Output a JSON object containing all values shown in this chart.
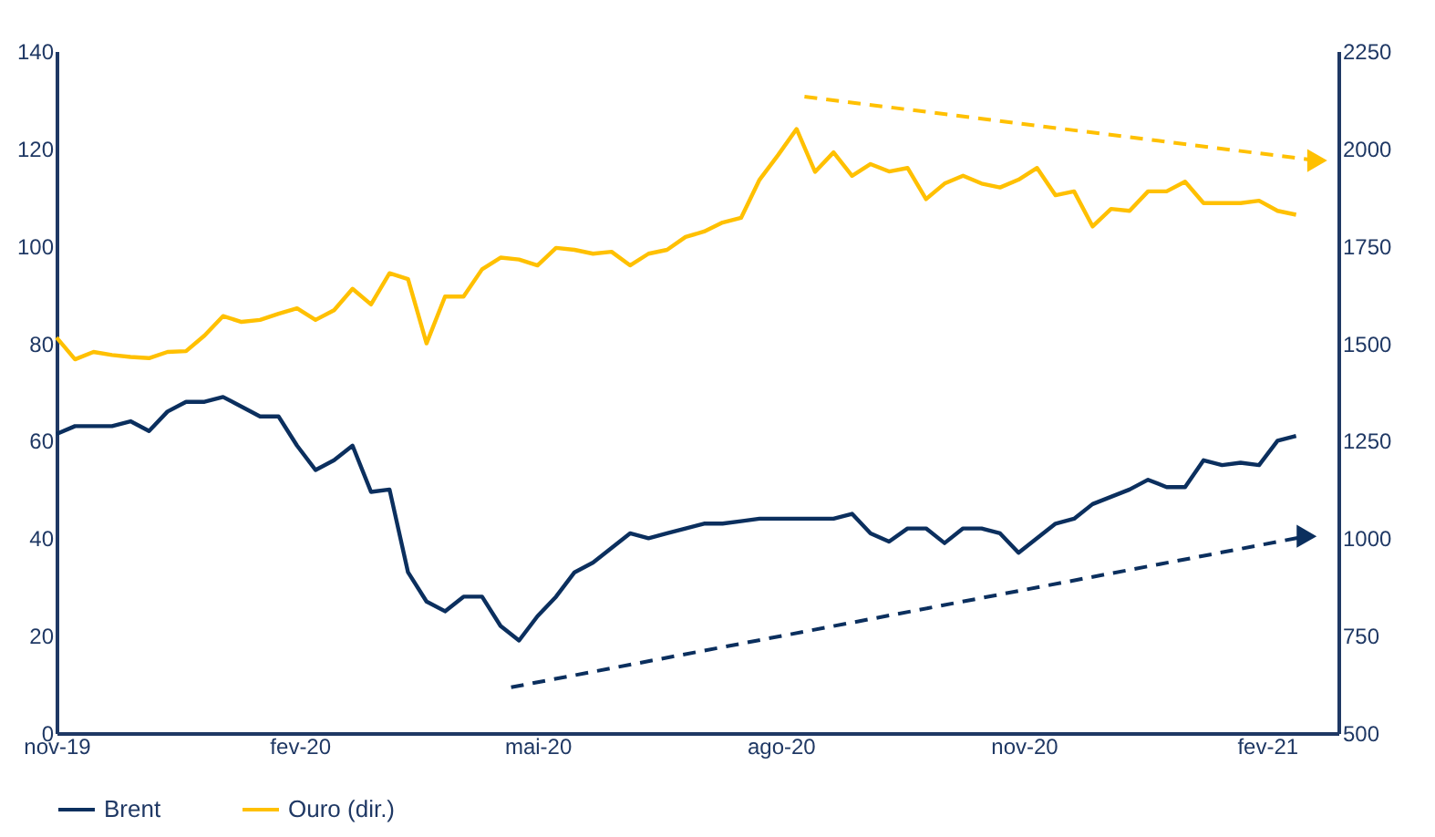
{
  "chart_data": {
    "type": "line",
    "x": [
      "2019-11-01",
      "2019-11-08",
      "2019-11-15",
      "2019-11-22",
      "2019-11-29",
      "2019-12-06",
      "2019-12-13",
      "2019-12-20",
      "2019-12-27",
      "2020-01-03",
      "2020-01-10",
      "2020-01-17",
      "2020-01-24",
      "2020-01-31",
      "2020-02-07",
      "2020-02-14",
      "2020-02-21",
      "2020-02-28",
      "2020-03-06",
      "2020-03-13",
      "2020-03-20",
      "2020-03-27",
      "2020-04-03",
      "2020-04-10",
      "2020-04-17",
      "2020-04-24",
      "2020-05-01",
      "2020-05-08",
      "2020-05-15",
      "2020-05-22",
      "2020-05-29",
      "2020-06-05",
      "2020-06-12",
      "2020-06-19",
      "2020-06-26",
      "2020-07-03",
      "2020-07-10",
      "2020-07-17",
      "2020-07-24",
      "2020-07-31",
      "2020-08-07",
      "2020-08-14",
      "2020-08-21",
      "2020-08-28",
      "2020-09-04",
      "2020-09-11",
      "2020-09-18",
      "2020-09-25",
      "2020-10-02",
      "2020-10-09",
      "2020-10-16",
      "2020-10-23",
      "2020-10-30",
      "2020-11-06",
      "2020-11-13",
      "2020-11-20",
      "2020-11-27",
      "2020-12-04",
      "2020-12-11",
      "2020-12-18",
      "2020-12-25",
      "2021-01-01",
      "2021-01-08",
      "2021-01-15",
      "2021-01-22",
      "2021-01-29",
      "2021-02-05",
      "2021-02-12"
    ],
    "series": [
      {
        "name": "Brent",
        "color": "#0b2f5e",
        "values": [
          61.4,
          63,
          63,
          63,
          64,
          62,
          66,
          68,
          68,
          69,
          67,
          65,
          65,
          59,
          54,
          56,
          59,
          49.5,
          50,
          33,
          27,
          25,
          28,
          28,
          22,
          19,
          24,
          28,
          33,
          35,
          38,
          41,
          40,
          41,
          42,
          43,
          43,
          43.5,
          44,
          44,
          44,
          44,
          44,
          45,
          41,
          39.3,
          42,
          42,
          39,
          42,
          42,
          41,
          37,
          40,
          43,
          44,
          47,
          48.5,
          50,
          52,
          50.5,
          50.5,
          56,
          55,
          55.5,
          55,
          60,
          61
        ]
      },
      {
        "name": "Ouro (dir.)",
        "color": "#ffc000",
        "axis": "y2",
        "values": [
          1515,
          1459,
          1478,
          1470,
          1465,
          1462,
          1478,
          1480,
          1520,
          1570,
          1555,
          1560,
          1576,
          1590,
          1560,
          1585,
          1640,
          1600,
          1680,
          1665,
          1500,
          1620,
          1620,
          1690,
          1720,
          1715,
          1700,
          1745,
          1740,
          1730,
          1735,
          1700,
          1730,
          1740,
          1773,
          1787,
          1810,
          1822,
          1920,
          1983,
          2050,
          1940,
          1990,
          1930,
          1960,
          1941,
          1950,
          1870,
          1910,
          1930,
          1910,
          1900,
          1920,
          1950,
          1880,
          1890,
          1800,
          1845,
          1840,
          1890,
          1890,
          1915,
          1860,
          1860,
          1860,
          1866,
          1840,
          1830
        ]
      },
      {
        "type": "line",
        "color": "#0b2f5e",
        "line_style": "dashed",
        "x": [
          "2020-04-21",
          "2021-02-16"
        ],
        "values": [
          9.4,
          40.4
        ]
      },
      {
        "type": "line",
        "color": "#ffc000",
        "line_style": "dashed",
        "axis": "y2",
        "x": [
          "2020-08-10",
          "2021-02-20"
        ],
        "values": [
          2133,
          1969
        ]
      }
    ],
    "xlim": [
      "2019-11-01",
      "2021-02-28"
    ],
    "xticks": [
      {
        "value": "2019-11-01",
        "label": "nov-19"
      },
      {
        "value": "2020-02-01",
        "label": "fev-20"
      },
      {
        "value": "2020-05-01",
        "label": "mai-20"
      },
      {
        "value": "2020-08-01",
        "label": "ago-20"
      },
      {
        "value": "2020-11-01",
        "label": "nov-20"
      },
      {
        "value": "2021-02-01",
        "label": "fev-21"
      }
    ],
    "ylim": [
      0,
      140
    ],
    "yticks": [
      0,
      20,
      40,
      60,
      80,
      100,
      120,
      140
    ],
    "y2lim": [
      500,
      2250
    ],
    "y2ticks": [
      500,
      750,
      1000,
      1250,
      1500,
      1750,
      2000,
      2250
    ],
    "legend": "bottom",
    "grid": false,
    "line_style": "solid"
  }
}
